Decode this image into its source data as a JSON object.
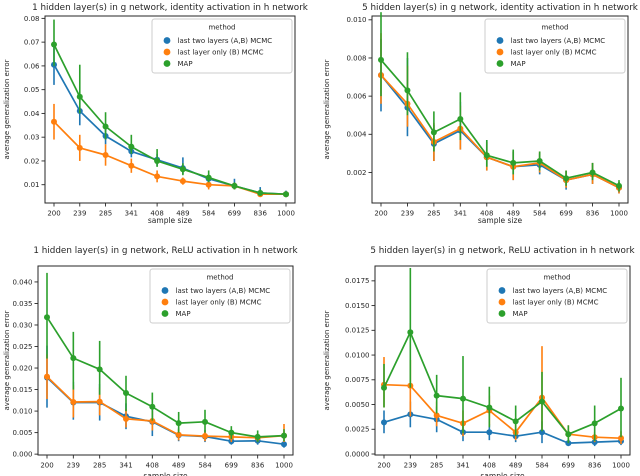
{
  "figure": {
    "xlabel": "sample size",
    "ylabel": "average generalization error",
    "legend_title": "method",
    "series_colors": {
      "blue": "#1f77b4",
      "orange": "#ff7f0e",
      "green": "#2ca02c"
    }
  },
  "chart_data": [
    {
      "type": "line",
      "title": "1 hidden layer(s) in g network, identity activation in h network",
      "xlabel": "sample size",
      "ylabel": "average generalization error",
      "legend_title": "method",
      "legend_position": "upper right",
      "grid": false,
      "x": [
        200,
        239,
        285,
        341,
        408,
        489,
        584,
        699,
        836,
        1000
      ],
      "x_tick_labels": [
        "200",
        "239",
        "285",
        "341",
        "408",
        "489",
        "584",
        "699",
        "836",
        "1000"
      ],
      "yticks": [
        0.01,
        0.02,
        0.03,
        0.04,
        0.05,
        0.06,
        0.07,
        0.08
      ],
      "ytick_labels": [
        "0.01",
        "0.02",
        "0.03",
        "0.04",
        "0.05",
        "0.06",
        "0.07",
        "0.08"
      ],
      "ylim": [
        0.0023,
        0.081
      ],
      "series": [
        {
          "name": "last two layers (A,B) MCMC",
          "color": "#1f77b4",
          "values": [
            0.0605,
            0.041,
            0.0305,
            0.024,
            0.0205,
            0.017,
            0.0125,
            0.0095,
            0.0065,
            0.006
          ],
          "err_lo": [
            0.052,
            0.035,
            0.027,
            0.0215,
            0.018,
            0.0145,
            0.011,
            0.008,
            0.0055,
            0.005
          ],
          "err_hi": [
            0.068,
            0.047,
            0.034,
            0.0265,
            0.023,
            0.0215,
            0.014,
            0.0125,
            0.009,
            0.0075
          ]
        },
        {
          "name": "last layer only (B) MCMC",
          "color": "#ff7f0e",
          "values": [
            0.0365,
            0.0255,
            0.0225,
            0.018,
            0.0135,
            0.0115,
            0.01,
            0.0095,
            0.006,
            0.006
          ],
          "err_lo": [
            0.029,
            0.02,
            0.018,
            0.015,
            0.011,
            0.01,
            0.008,
            0.008,
            0.005,
            0.005
          ],
          "err_hi": [
            0.044,
            0.031,
            0.027,
            0.021,
            0.016,
            0.013,
            0.0115,
            0.0105,
            0.007,
            0.0065
          ]
        },
        {
          "name": "MAP",
          "color": "#2ca02c",
          "values": [
            0.069,
            0.047,
            0.0345,
            0.026,
            0.02,
            0.0165,
            0.013,
            0.0095,
            0.0065,
            0.006
          ],
          "err_lo": [
            0.06,
            0.04,
            0.029,
            0.023,
            0.0175,
            0.014,
            0.011,
            0.008,
            0.006,
            0.0055
          ],
          "err_hi": [
            0.0795,
            0.0605,
            0.0405,
            0.031,
            0.025,
            0.019,
            0.016,
            0.011,
            0.008,
            0.007
          ]
        }
      ]
    },
    {
      "type": "line",
      "title": "5 hidden layer(s) in g network, identity activation in h network",
      "xlabel": "sample size",
      "ylabel": "average generalization error",
      "legend_title": "method",
      "legend_position": "upper right",
      "grid": false,
      "x": [
        200,
        239,
        285,
        341,
        408,
        489,
        584,
        699,
        836,
        1000
      ],
      "x_tick_labels": [
        "200",
        "239",
        "285",
        "341",
        "408",
        "489",
        "584",
        "699",
        "836",
        "1000"
      ],
      "yticks": [
        0.002,
        0.004,
        0.006,
        0.008,
        0.01
      ],
      "ytick_labels": [
        "0.002",
        "0.004",
        "0.006",
        "0.008",
        "0.010"
      ],
      "ylim": [
        0.0004,
        0.0102
      ],
      "series": [
        {
          "name": "last two layers (A,B) MCMC",
          "color": "#1f77b4",
          "values": [
            0.0071,
            0.0054,
            0.0035,
            0.0042,
            0.0028,
            0.0023,
            0.0024,
            0.0016,
            0.0019,
            0.0012
          ],
          "err_lo": [
            0.0052,
            0.0039,
            0.0026,
            0.0032,
            0.0021,
            0.0016,
            0.0019,
            0.0011,
            0.0014,
            0.0009
          ],
          "err_hi": [
            0.009,
            0.008,
            0.0045,
            0.0057,
            0.0037,
            0.0031,
            0.003,
            0.0021,
            0.0025,
            0.0015
          ]
        },
        {
          "name": "last layer only (B) MCMC",
          "color": "#ff7f0e",
          "values": [
            0.0071,
            0.0056,
            0.0036,
            0.0043,
            0.0028,
            0.0023,
            0.0025,
            0.0016,
            0.0019,
            0.0012
          ],
          "err_lo": [
            0.0056,
            0.0044,
            0.0026,
            0.0032,
            0.0021,
            0.0016,
            0.002,
            0.0012,
            0.0014,
            0.0009
          ],
          "err_hi": [
            0.0093,
            0.0076,
            0.0046,
            0.0055,
            0.0036,
            0.0031,
            0.0031,
            0.0021,
            0.0025,
            0.0015
          ]
        },
        {
          "name": "MAP",
          "color": "#2ca02c",
          "values": [
            0.0079,
            0.0063,
            0.0041,
            0.0048,
            0.0029,
            0.0025,
            0.0026,
            0.0017,
            0.002,
            0.0013
          ],
          "err_lo": [
            0.006,
            0.005,
            0.0031,
            0.0037,
            0.0023,
            0.0019,
            0.0021,
            0.0013,
            0.0016,
            0.001
          ],
          "err_hi": [
            0.0104,
            0.0083,
            0.0052,
            0.0062,
            0.0037,
            0.0032,
            0.0031,
            0.0021,
            0.0025,
            0.0016
          ]
        }
      ]
    },
    {
      "type": "line",
      "title": "1 hidden layer(s) in g network, ReLU activation in h network",
      "xlabel": "sample size",
      "ylabel": "average generalization error",
      "legend_title": "method",
      "legend_position": "upper right",
      "grid": false,
      "x": [
        200,
        239,
        285,
        341,
        408,
        489,
        584,
        699,
        836,
        1000
      ],
      "x_tick_labels": [
        "200",
        "239",
        "285",
        "341",
        "408",
        "489",
        "584",
        "699",
        "836",
        "1000"
      ],
      "yticks": [
        0.0,
        0.005,
        0.01,
        0.015,
        0.02,
        0.025,
        0.03,
        0.035,
        0.04
      ],
      "ytick_labels": [
        "0.000",
        "0.005",
        "0.010",
        "0.015",
        "0.020",
        "0.025",
        "0.030",
        "0.035",
        "0.040"
      ],
      "ylim": [
        -0.0002,
        0.0437
      ],
      "series": [
        {
          "name": "last two layers (A,B) MCMC",
          "color": "#1f77b4",
          "values": [
            0.0178,
            0.012,
            0.012,
            0.0088,
            0.0075,
            0.0044,
            0.0041,
            0.003,
            0.0031,
            0.0023
          ],
          "err_lo": [
            0.0108,
            0.008,
            0.0078,
            0.0058,
            0.0042,
            0.003,
            0.0028,
            0.0022,
            0.0022,
            0.0015
          ],
          "err_hi": [
            0.0252,
            0.0168,
            0.0163,
            0.0118,
            0.0108,
            0.006,
            0.0056,
            0.004,
            0.004,
            0.0032
          ]
        },
        {
          "name": "last layer only (B) MCMC",
          "color": "#ff7f0e",
          "values": [
            0.018,
            0.0121,
            0.0122,
            0.0082,
            0.0077,
            0.0045,
            0.0042,
            0.004,
            0.0038,
            0.0043
          ],
          "err_lo": [
            0.0128,
            0.0085,
            0.009,
            0.0062,
            0.0055,
            0.0032,
            0.003,
            0.0028,
            0.0028,
            0.0028
          ],
          "err_hi": [
            0.0232,
            0.016,
            0.0155,
            0.0105,
            0.01,
            0.0058,
            0.0055,
            0.0052,
            0.0048,
            0.007
          ]
        },
        {
          "name": "MAP",
          "color": "#2ca02c",
          "values": [
            0.0318,
            0.0223,
            0.0197,
            0.0142,
            0.011,
            0.0072,
            0.0075,
            0.005,
            0.004,
            0.0043
          ],
          "err_lo": [
            0.0222,
            0.015,
            0.0138,
            0.01,
            0.0078,
            0.005,
            0.005,
            0.0035,
            0.0028,
            0.003
          ],
          "err_hi": [
            0.0421,
            0.0284,
            0.0263,
            0.0182,
            0.0143,
            0.0098,
            0.0103,
            0.0065,
            0.0055,
            0.0058
          ]
        }
      ]
    },
    {
      "type": "line",
      "title": "5 hidden layer(s) in g network, ReLU activation in h network",
      "xlabel": "sample size",
      "ylabel": "average generalization error",
      "legend_title": "method",
      "legend_position": "upper right",
      "grid": false,
      "x": [
        200,
        239,
        285,
        341,
        408,
        489,
        584,
        699,
        836,
        1000
      ],
      "x_tick_labels": [
        "200",
        "239",
        "285",
        "341",
        "408",
        "489",
        "584",
        "699",
        "836",
        "1000"
      ],
      "yticks": [
        0.0,
        0.0025,
        0.005,
        0.0075,
        0.01,
        0.0125,
        0.015,
        0.0175
      ],
      "ytick_labels": [
        "0.0000",
        "0.0025",
        "0.0050",
        "0.0075",
        "0.0100",
        "0.0125",
        "0.0150",
        "0.0175"
      ],
      "ylim": [
        -0.0001,
        0.019
      ],
      "series": [
        {
          "name": "last two layers (A,B) MCMC",
          "color": "#1f77b4",
          "values": [
            0.0032,
            0.004,
            0.0035,
            0.0022,
            0.0022,
            0.0018,
            0.0022,
            0.0011,
            0.0012,
            0.0013
          ],
          "err_lo": [
            0.0021,
            0.0027,
            0.0022,
            0.0013,
            0.0014,
            0.0012,
            0.0011,
            0.0008,
            0.0008,
            0.0009
          ],
          "err_hi": [
            0.0044,
            0.0053,
            0.0048,
            0.0031,
            0.003,
            0.0024,
            0.0033,
            0.0015,
            0.0016,
            0.0018
          ]
        },
        {
          "name": "last layer only (B) MCMC",
          "color": "#ff7f0e",
          "values": [
            0.007,
            0.0069,
            0.0039,
            0.0031,
            0.0044,
            0.0022,
            0.0057,
            0.002,
            0.0017,
            0.0016
          ],
          "err_lo": [
            0.0047,
            0.0038,
            0.0028,
            0.0018,
            0.0029,
            0.0014,
            0.0024,
            0.0012,
            0.0012,
            0.001
          ],
          "err_hi": [
            0.0098,
            0.0095,
            0.0053,
            0.0044,
            0.0059,
            0.003,
            0.0109,
            0.0029,
            0.0022,
            0.0023
          ]
        },
        {
          "name": "MAP",
          "color": "#2ca02c",
          "values": [
            0.0067,
            0.0123,
            0.0059,
            0.0056,
            0.0047,
            0.0033,
            0.0053,
            0.002,
            0.0031,
            0.0046
          ],
          "err_lo": [
            0.0047,
            0.0067,
            0.0041,
            0.0021,
            0.0027,
            0.0018,
            0.0023,
            0.0011,
            0.0013,
            0.0017
          ],
          "err_hi": [
            0.0091,
            0.0188,
            0.008,
            0.0099,
            0.0068,
            0.0049,
            0.0083,
            0.0029,
            0.0049,
            0.0077
          ]
        }
      ]
    }
  ]
}
